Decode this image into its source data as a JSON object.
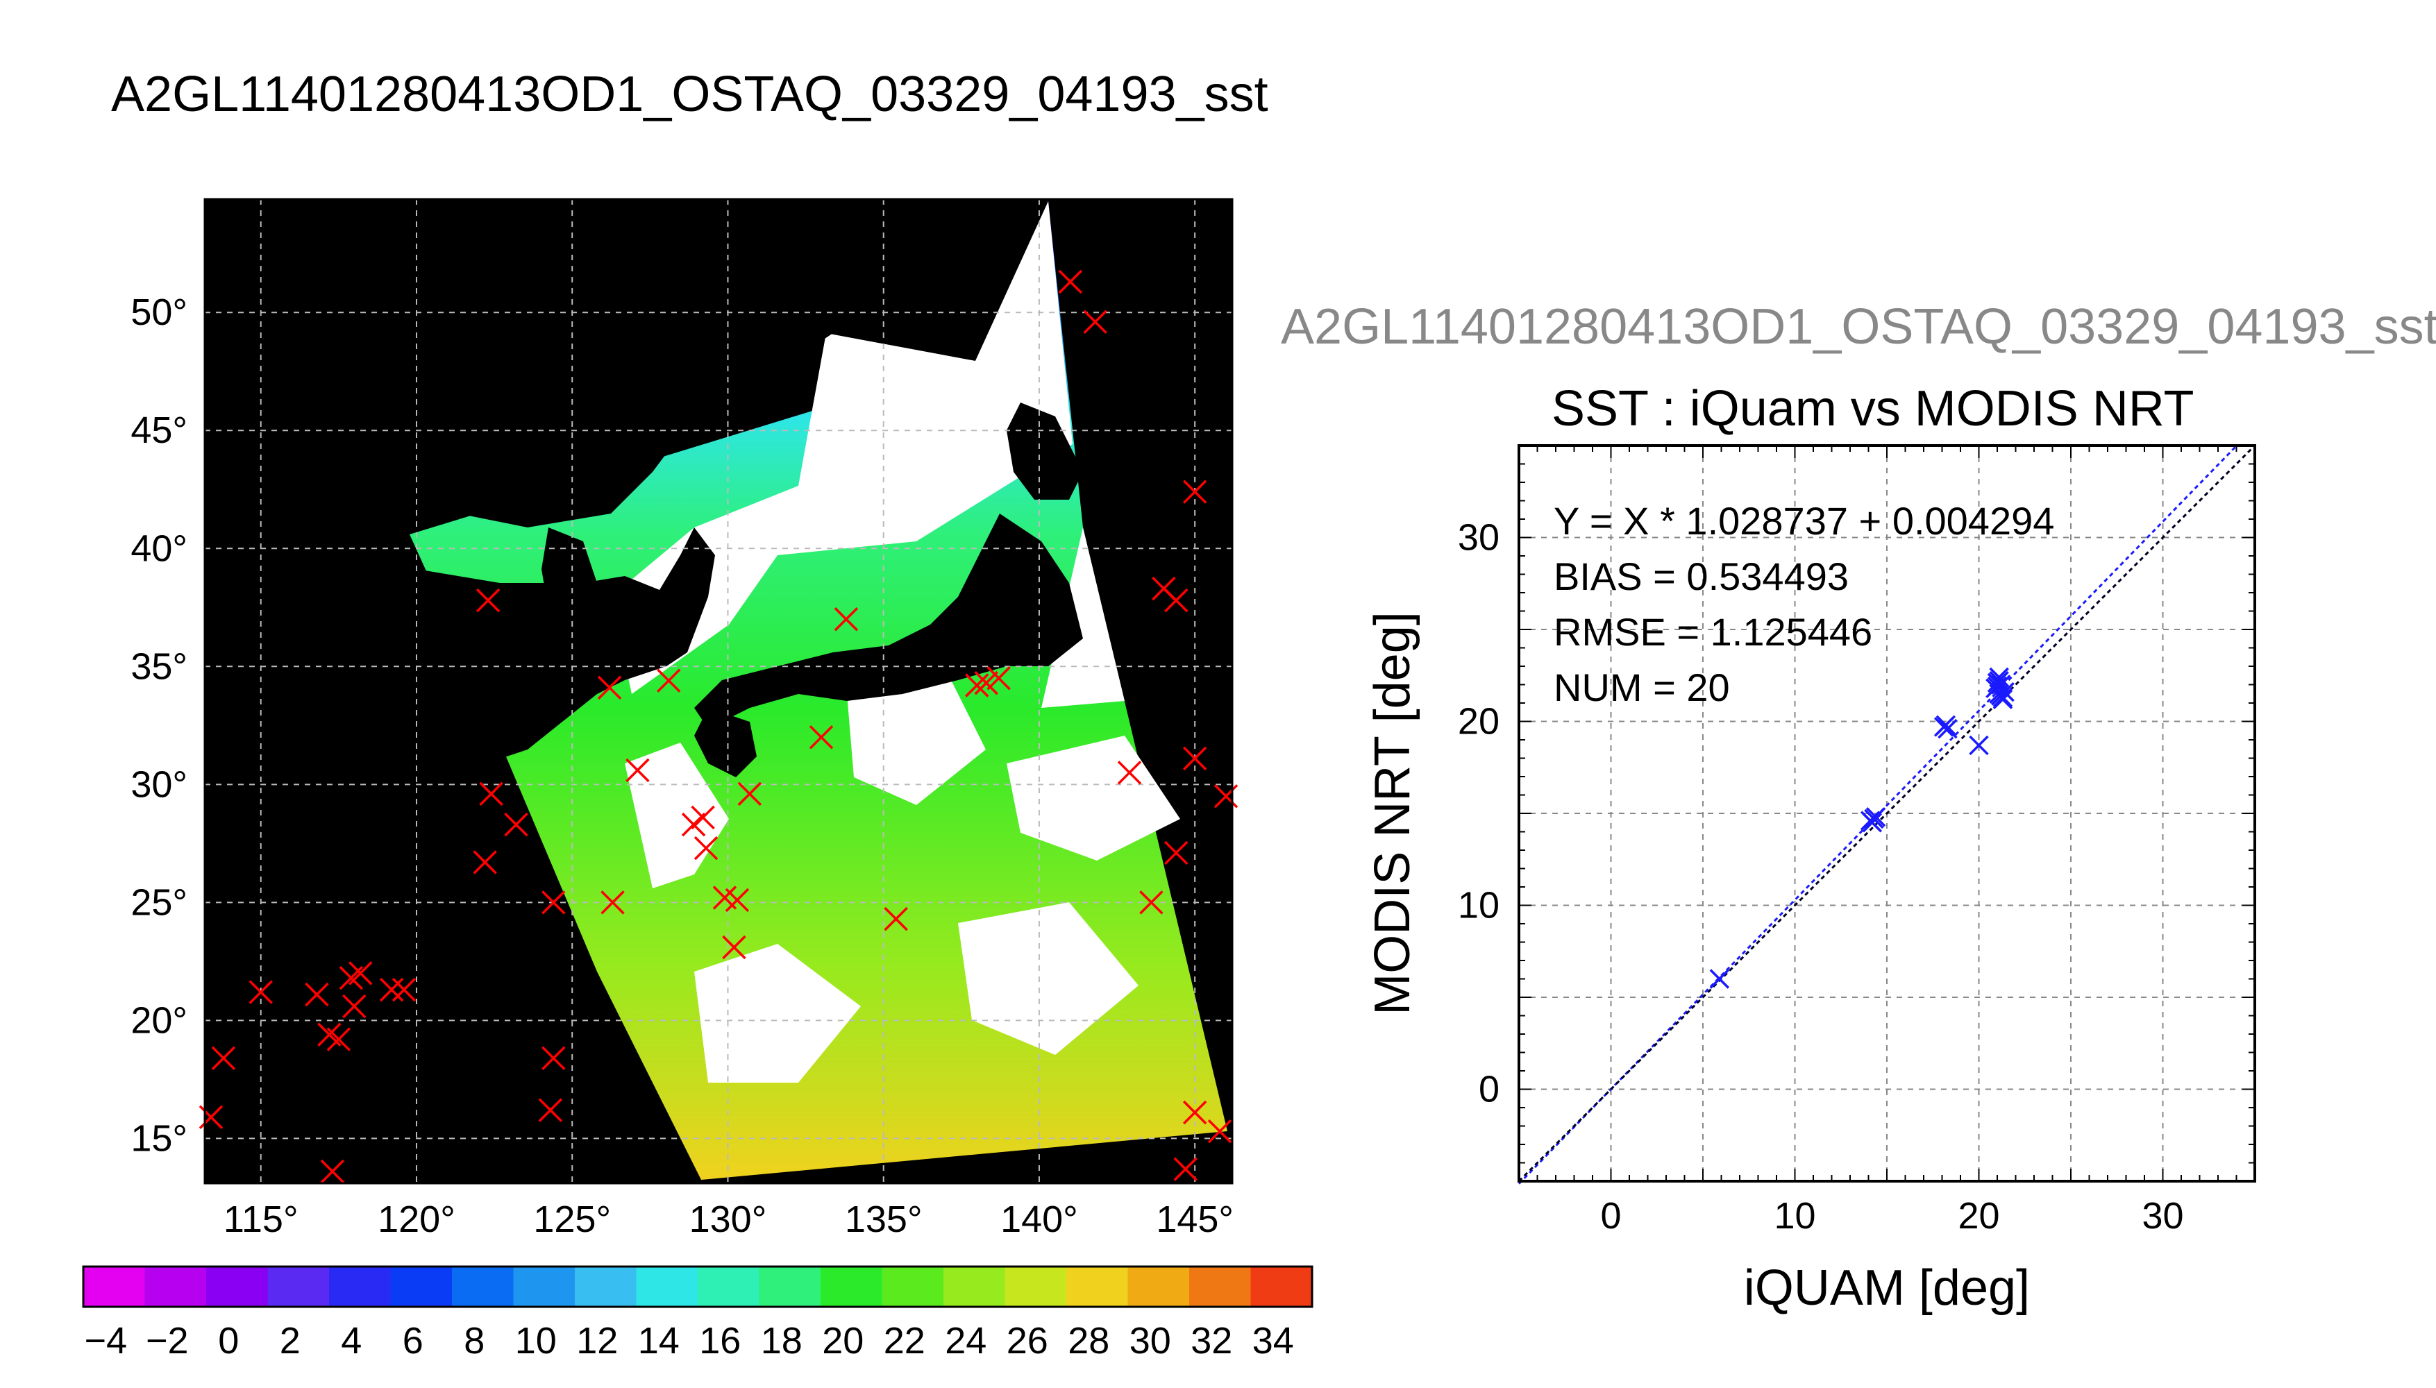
{
  "map": {
    "title": "A2GL11401280413OD1_OSTAQ_03329_04193_sst",
    "lon_ticks": [
      115,
      120,
      125,
      130,
      135,
      140,
      145
    ],
    "lat_ticks": [
      15,
      20,
      25,
      30,
      35,
      40,
      45,
      50
    ],
    "lon_range": [
      113.2,
      146.2
    ],
    "lat_range": [
      13.1,
      54.8
    ],
    "colors": {
      "background": "#000000",
      "land": "#000000",
      "cloud": "#ffffff",
      "grid": "#bbbbbb",
      "marker": "#ff0000",
      "marker_matched": "#1a1aff"
    },
    "markers_lonlat": [
      [
        141.0,
        51.3
      ],
      [
        141.8,
        49.6
      ],
      [
        145.0,
        42.4
      ],
      [
        144.0,
        38.3
      ],
      [
        144.4,
        37.8
      ],
      [
        122.3,
        37.8
      ],
      [
        133.8,
        37.0
      ],
      [
        126.2,
        34.1
      ],
      [
        128.1,
        34.4
      ],
      [
        138.3,
        34.3
      ],
      [
        138.7,
        34.5
      ],
      [
        138.0,
        34.2
      ],
      [
        133.0,
        32.0
      ],
      [
        145.0,
        31.1
      ],
      [
        127.1,
        30.6
      ],
      [
        142.9,
        30.5
      ],
      [
        146.0,
        29.5
      ],
      [
        122.4,
        29.6
      ],
      [
        130.7,
        29.6
      ],
      [
        123.2,
        28.3
      ],
      [
        128.9,
        28.3
      ],
      [
        129.2,
        28.6
      ],
      [
        129.3,
        27.3
      ],
      [
        144.4,
        27.1
      ],
      [
        122.2,
        26.7
      ],
      [
        124.4,
        25.0
      ],
      [
        126.3,
        25.0
      ],
      [
        129.9,
        25.2
      ],
      [
        130.3,
        25.1
      ],
      [
        143.6,
        25.0
      ],
      [
        135.4,
        24.3
      ],
      [
        130.2,
        23.1
      ],
      [
        115.0,
        21.2
      ],
      [
        116.8,
        21.1
      ],
      [
        118.2,
        22.0
      ],
      [
        117.9,
        21.8
      ],
      [
        119.2,
        21.3
      ],
      [
        119.6,
        21.3
      ],
      [
        118.0,
        20.6
      ],
      [
        117.2,
        19.4
      ],
      [
        117.5,
        19.2
      ],
      [
        113.8,
        18.4
      ],
      [
        124.4,
        18.4
      ],
      [
        124.3,
        16.2
      ],
      [
        113.4,
        15.9
      ],
      [
        145.0,
        16.1
      ],
      [
        145.8,
        15.3
      ],
      [
        117.3,
        13.6
      ],
      [
        144.7,
        13.7
      ]
    ]
  },
  "colorbar": {
    "tick_labels": [
      "−4",
      "−2",
      "0",
      "2",
      "4",
      "6",
      "8",
      "10",
      "12",
      "14",
      "16",
      "18",
      "20",
      "22",
      "24",
      "26",
      "28",
      "30",
      "32",
      "34"
    ],
    "colors": [
      "#e400f0",
      "#b800f0",
      "#8a00f2",
      "#5a2af2",
      "#2a2af5",
      "#0a3cf5",
      "#0a6cf2",
      "#1e96f0",
      "#38bef0",
      "#2ee6e6",
      "#2ef0b4",
      "#2ef07a",
      "#2aea2a",
      "#5aea1e",
      "#96ea1e",
      "#c8e61e",
      "#f0d21e",
      "#f0aa14",
      "#f07814",
      "#f03c14"
    ]
  },
  "scatter": {
    "file_title": "A2GL11401280413OD1_OSTAQ_03329_04193_sst",
    "title": "SST : iQuam vs MODIS NRT",
    "stats": [
      "Y = X * 1.028737 + 0.004294",
      "BIAS = 0.534493",
      "RMSE = 1.125446",
      "NUM = 20"
    ],
    "xlabel": "iQUAM [deg]",
    "ylabel": "MODIS NRT [deg]",
    "x_ticks": [
      0,
      10,
      20,
      30
    ],
    "y_ticks": [
      0,
      10,
      20,
      30
    ],
    "axis_color": "#1a1aff"
  },
  "chart_data": {
    "type": "scatter",
    "title": "SST : iQuam vs MODIS NRT",
    "xlabel": "iQUAM [deg]",
    "ylabel": "MODIS NRT [deg]",
    "xlim": [
      -5,
      35
    ],
    "ylim": [
      -5,
      35
    ],
    "grid": true,
    "fit": {
      "slope": 1.028737,
      "intercept": 0.004294
    },
    "points": [
      [
        5.9,
        6.0
      ],
      [
        14.1,
        14.6
      ],
      [
        14.2,
        14.5
      ],
      [
        14.4,
        14.8
      ],
      [
        14.3,
        14.7
      ],
      [
        18.1,
        19.7
      ],
      [
        18.2,
        19.8
      ],
      [
        18.3,
        19.6
      ],
      [
        20.0,
        18.7
      ],
      [
        20.9,
        21.8
      ],
      [
        21.0,
        22.1
      ],
      [
        21.1,
        22.4
      ],
      [
        21.2,
        21.4
      ],
      [
        21.3,
        21.2
      ],
      [
        21.1,
        21.5
      ],
      [
        21.0,
        21.9
      ],
      [
        21.2,
        22.0
      ],
      [
        21.4,
        21.6
      ],
      [
        21.3,
        21.3
      ],
      [
        21.1,
        22.2
      ]
    ]
  }
}
